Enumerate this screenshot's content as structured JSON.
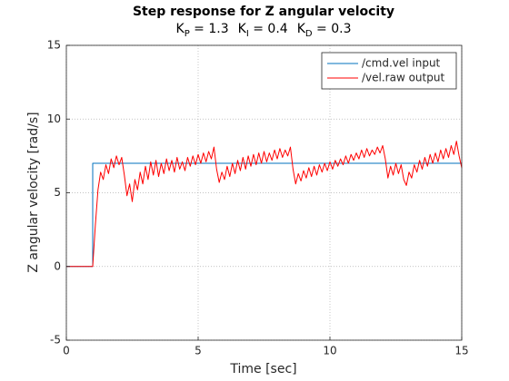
{
  "chart_data": {
    "type": "line",
    "title": "Step response for Z angular velocity",
    "subtitle": [
      {
        "base": "K",
        "sub": "P",
        "text": " = 1.3"
      },
      {
        "base": "K",
        "sub": "I",
        "text": " = 0.4"
      },
      {
        "base": "K",
        "sub": "D",
        "text": " = 0.3"
      }
    ],
    "xlabel": "Time [sec]",
    "ylabel": "Z angular velocity [rad/s]",
    "xlim": [
      0,
      15
    ],
    "ylim": [
      -5,
      15
    ],
    "xticks": [
      0,
      5,
      10,
      15
    ],
    "yticks": [
      -5,
      0,
      5,
      10,
      15
    ],
    "grid": true,
    "legend": "top-right",
    "series": [
      {
        "name": "/cmd.vel input",
        "color": "#0072bd",
        "x": [
          0,
          1,
          1,
          15
        ],
        "values": [
          0,
          0,
          7,
          7
        ]
      },
      {
        "name": "/vel.raw output",
        "color": "#ff0000",
        "x": [
          0,
          1.0,
          1.1,
          1.2,
          1.3,
          1.4,
          1.5,
          1.6,
          1.7,
          1.8,
          1.9,
          2.0,
          2.1,
          2.2,
          2.3,
          2.4,
          2.5,
          2.6,
          2.7,
          2.8,
          2.9,
          3.0,
          3.1,
          3.2,
          3.3,
          3.4,
          3.5,
          3.6,
          3.7,
          3.8,
          3.9,
          4.0,
          4.1,
          4.2,
          4.3,
          4.4,
          4.5,
          4.6,
          4.7,
          4.8,
          4.9,
          5.0,
          5.1,
          5.2,
          5.3,
          5.4,
          5.5,
          5.6,
          5.7,
          5.8,
          5.9,
          6.0,
          6.1,
          6.2,
          6.3,
          6.4,
          6.5,
          6.6,
          6.7,
          6.8,
          6.9,
          7.0,
          7.1,
          7.2,
          7.3,
          7.4,
          7.5,
          7.6,
          7.7,
          7.8,
          7.9,
          8.0,
          8.1,
          8.2,
          8.3,
          8.4,
          8.5,
          8.6,
          8.7,
          8.8,
          8.9,
          9.0,
          9.1,
          9.2,
          9.3,
          9.4,
          9.5,
          9.6,
          9.7,
          9.8,
          9.9,
          10.0,
          10.1,
          10.2,
          10.3,
          10.4,
          10.5,
          10.6,
          10.7,
          10.8,
          10.9,
          11.0,
          11.1,
          11.2,
          11.3,
          11.4,
          11.5,
          11.6,
          11.7,
          11.8,
          11.9,
          12.0,
          12.1,
          12.2,
          12.3,
          12.4,
          12.5,
          12.6,
          12.7,
          12.8,
          12.9,
          13.0,
          13.1,
          13.2,
          13.3,
          13.4,
          13.5,
          13.6,
          13.7,
          13.8,
          13.9,
          14.0,
          14.1,
          14.2,
          14.3,
          14.4,
          14.5,
          14.6,
          14.7,
          14.8,
          14.9,
          15.0
        ],
        "values": [
          0,
          0,
          2.8,
          5.2,
          6.4,
          5.9,
          6.9,
          6.3,
          7.3,
          6.7,
          7.5,
          6.9,
          7.4,
          6.2,
          4.8,
          5.6,
          4.4,
          5.9,
          5.2,
          6.4,
          5.6,
          6.8,
          5.9,
          7.1,
          6.2,
          7.2,
          6.1,
          7.0,
          6.3,
          7.3,
          6.5,
          7.2,
          6.4,
          7.4,
          6.6,
          7.1,
          6.5,
          7.4,
          6.8,
          7.5,
          6.9,
          7.6,
          7.0,
          7.7,
          7.1,
          7.8,
          7.3,
          8.1,
          6.6,
          5.7,
          6.4,
          5.9,
          6.8,
          6.1,
          7.0,
          6.3,
          7.2,
          6.5,
          7.4,
          6.6,
          7.5,
          6.8,
          7.6,
          6.9,
          7.7,
          7.0,
          7.8,
          7.1,
          7.7,
          7.2,
          7.9,
          7.3,
          8.0,
          7.4,
          7.9,
          7.5,
          8.1,
          6.6,
          5.6,
          6.3,
          5.8,
          6.5,
          6.0,
          6.7,
          6.1,
          6.8,
          6.2,
          6.9,
          6.4,
          7.0,
          6.5,
          7.1,
          6.6,
          7.2,
          6.8,
          7.3,
          6.9,
          7.5,
          7.0,
          7.6,
          7.2,
          7.7,
          7.3,
          7.9,
          7.4,
          8.0,
          7.5,
          7.9,
          7.6,
          8.1,
          7.7,
          8.2,
          7.3,
          6.0,
          6.8,
          6.2,
          7.0,
          6.3,
          6.9,
          5.9,
          5.5,
          6.4,
          6.0,
          6.9,
          6.4,
          7.2,
          6.6,
          7.4,
          6.8,
          7.6,
          7.0,
          7.7,
          7.1,
          7.9,
          7.3,
          8.0,
          7.4,
          8.2,
          7.6,
          8.5,
          7.5,
          6.7
        ]
      }
    ]
  }
}
